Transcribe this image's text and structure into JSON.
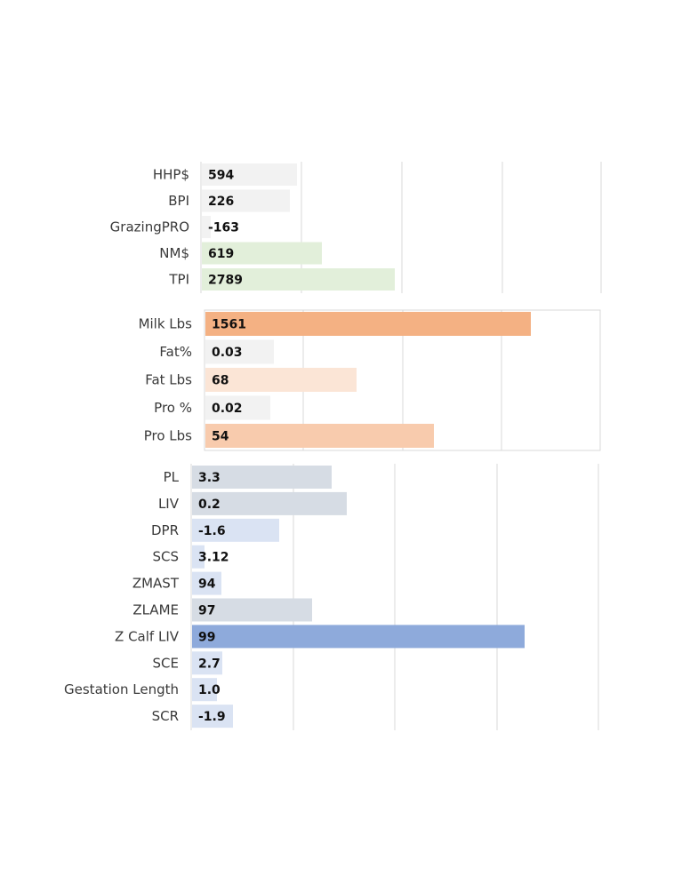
{
  "chart_data": [
    {
      "type": "bar",
      "orientation": "horizontal",
      "categories": [
        "HHP$",
        "BPI",
        "GrazingPRO",
        "NM$",
        "TPI"
      ],
      "values": [
        594,
        226,
        -163,
        619,
        2789
      ],
      "value_labels": [
        "594",
        "226",
        "-163",
        "619",
        "2789"
      ],
      "colors": [
        "#f2f2f2",
        "#f2f2f2",
        "#f2f2f2",
        "#e2efda",
        "#e2efda"
      ],
      "grid": true,
      "bordered": false
    },
    {
      "type": "bar",
      "orientation": "horizontal",
      "categories": [
        "Milk Lbs",
        "Fat%",
        "Fat Lbs",
        "Pro %",
        "Pro Lbs"
      ],
      "values": [
        1561,
        0.03,
        68,
        0.02,
        54
      ],
      "value_labels": [
        "1561",
        "0.03",
        "68",
        "0.02",
        "54"
      ],
      "colors": [
        "#f4b183",
        "#f2f2f2",
        "#fbe5d6",
        "#f2f2f2",
        "#f8cbad"
      ],
      "grid": true,
      "bordered": true
    },
    {
      "type": "bar",
      "orientation": "horizontal",
      "categories": [
        "PL",
        "LIV",
        "DPR",
        "SCS",
        "ZMAST",
        "ZLAME",
        "Z Calf LIV",
        "SCE",
        "Gestation Length",
        "SCR"
      ],
      "values": [
        3.3,
        0.2,
        -1.6,
        3.12,
        94,
        97,
        99,
        2.7,
        1.0,
        -1.9
      ],
      "value_labels": [
        "3.3",
        "0.2",
        "-1.6",
        "3.12",
        "94",
        "97",
        "99",
        "2.7",
        "1.0",
        "-1.9"
      ],
      "colors": [
        "#d6dce4",
        "#d6dce4",
        "#dae3f3",
        "#dae3f3",
        "#dae3f3",
        "#d6dce4",
        "#8eaadb",
        "#dae3f3",
        "#dae3f3",
        "#dae3f3"
      ],
      "grid": true,
      "bordered": false
    }
  ]
}
